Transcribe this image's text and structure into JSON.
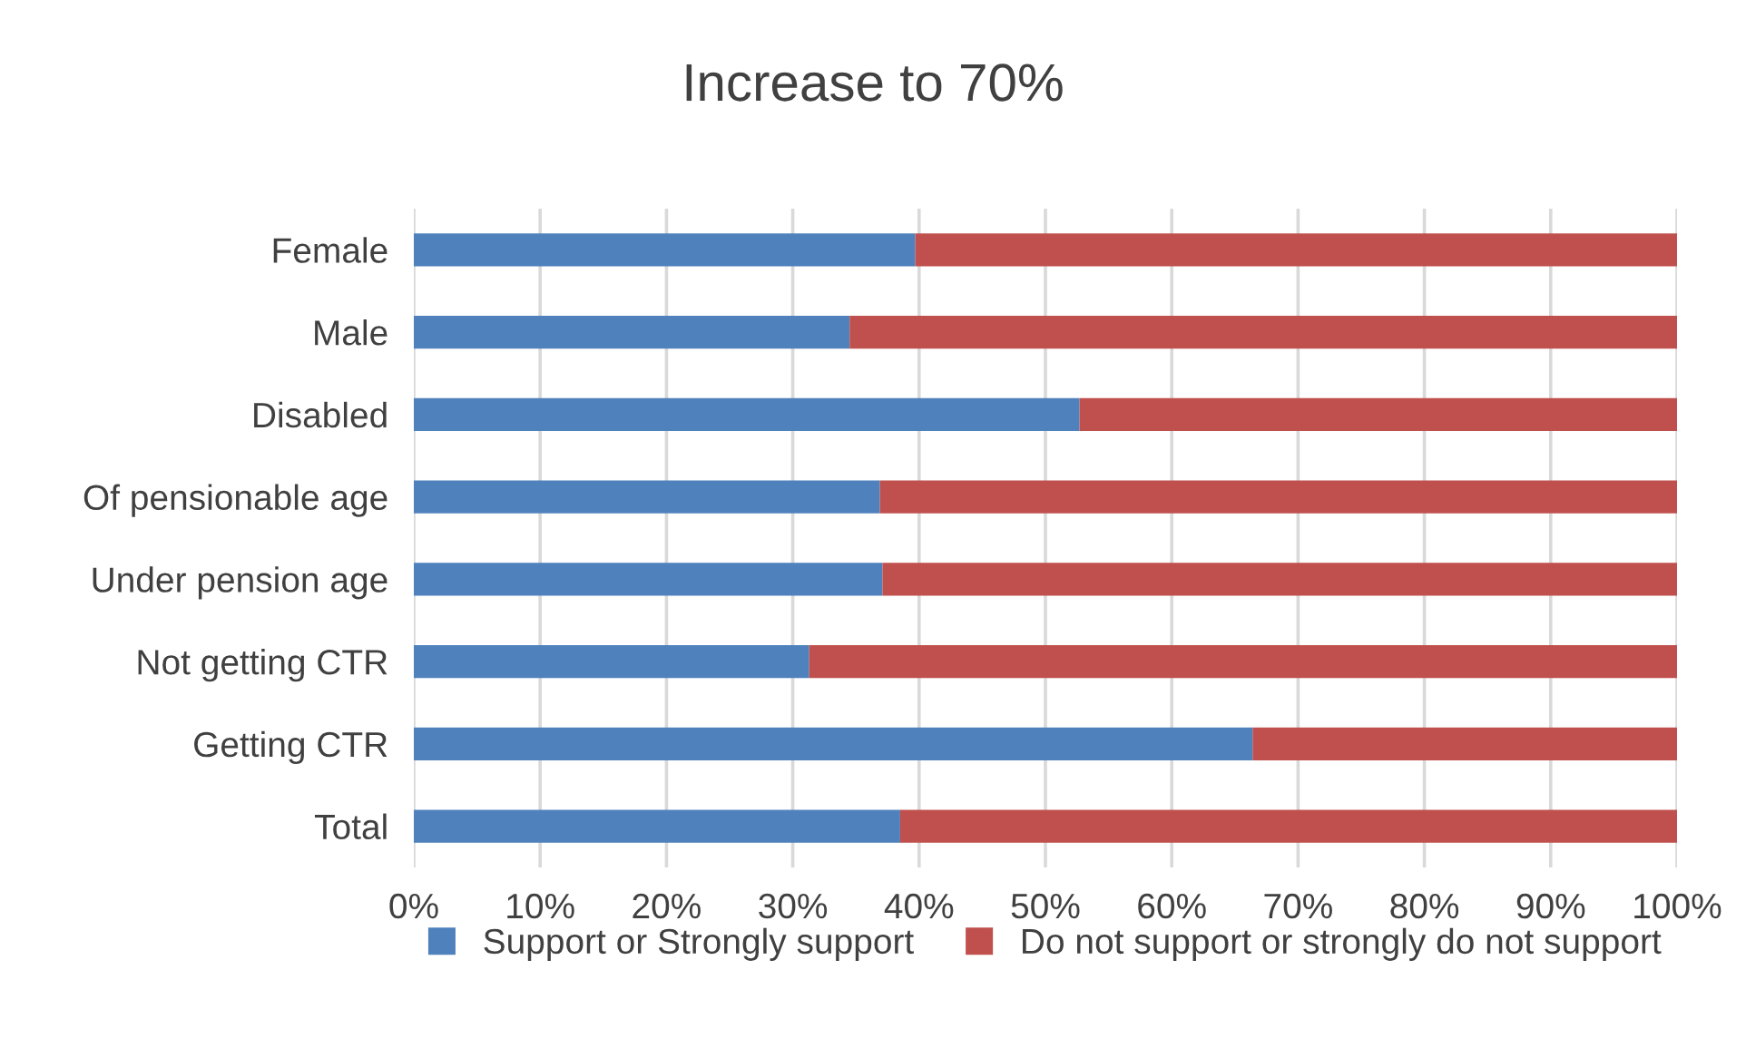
{
  "chart_data": {
    "type": "bar",
    "orientation": "horizontal",
    "stacked": true,
    "title": "Increase to 70%",
    "categories": [
      "Female",
      "Male",
      "Disabled",
      "Of pensionable age",
      "Under pension age",
      "Not getting CTR",
      "Getting CTR",
      "Total"
    ],
    "series": [
      {
        "name": "Support or Strongly support",
        "color": "#4f81bd",
        "values": [
          39.7,
          34.5,
          52.7,
          36.9,
          37.1,
          31.3,
          66.4,
          38.5
        ]
      },
      {
        "name": "Do not support or strongly do not support",
        "color": "#c0504d",
        "values": [
          60.3,
          65.5,
          47.3,
          63.1,
          62.9,
          68.7,
          33.6,
          61.5
        ]
      }
    ],
    "xlim": [
      0,
      100
    ],
    "xticks": [
      {
        "value": 0,
        "label": "0%"
      },
      {
        "value": 10,
        "label": "10%"
      },
      {
        "value": 20,
        "label": "20%"
      },
      {
        "value": 30,
        "label": "30%"
      },
      {
        "value": 40,
        "label": "40%"
      },
      {
        "value": 50,
        "label": "50%"
      },
      {
        "value": 60,
        "label": "60%"
      },
      {
        "value": 70,
        "label": "70%"
      },
      {
        "value": 80,
        "label": "80%"
      },
      {
        "value": 90,
        "label": "90%"
      },
      {
        "value": 100,
        "label": "100%"
      }
    ],
    "grid": "x",
    "legend": "bottom"
  }
}
